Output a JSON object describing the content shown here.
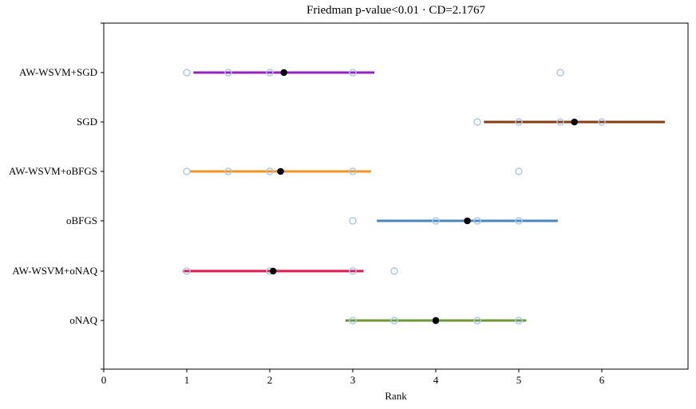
{
  "chart_data": {
    "type": "scatter",
    "title": "Friedman p-value<0.01 · CD=2.1767",
    "xlabel": "Rank",
    "ylabel": "",
    "xlim": [
      0,
      7
    ],
    "x_ticks": [
      "0",
      "1",
      "2",
      "3",
      "4",
      "5",
      "6"
    ],
    "critical_difference": 2.1767,
    "grid": false,
    "methods": [
      {
        "name": "AW-WSVM+SGD",
        "color": "#9b1fc0",
        "mean_rank": 2.17,
        "interval": [
          1.08,
          3.26
        ],
        "ranks": [
          1,
          1.5,
          2,
          3,
          5.5
        ]
      },
      {
        "name": "SGD",
        "color": "#8b3a0f",
        "mean_rank": 5.67,
        "interval": [
          4.58,
          6.76
        ],
        "ranks": [
          4.5,
          5,
          5.5,
          6
        ]
      },
      {
        "name": "AW-WSVM+oBFGS",
        "color": "#f5921e",
        "mean_rank": 2.13,
        "interval": [
          1.04,
          3.22
        ],
        "ranks": [
          1,
          1.5,
          2,
          3,
          5
        ]
      },
      {
        "name": "oBFGS",
        "color": "#4a86c0",
        "mean_rank": 4.38,
        "interval": [
          3.29,
          5.47
        ],
        "ranks": [
          3,
          4,
          4.5,
          5
        ]
      },
      {
        "name": "AW-WSVM+oNAQ",
        "color": "#e0194e",
        "mean_rank": 2.04,
        "interval": [
          0.95,
          3.13
        ],
        "ranks": [
          1,
          2,
          3,
          3.5
        ]
      },
      {
        "name": "oNAQ",
        "color": "#6a9a36",
        "mean_rank": 4.0,
        "interval": [
          2.91,
          5.09
        ],
        "ranks": [
          3,
          3.5,
          4,
          4.5,
          5
        ]
      }
    ],
    "rank_marker_color": "#a9c8ec",
    "mean_marker_color": "#000000"
  }
}
